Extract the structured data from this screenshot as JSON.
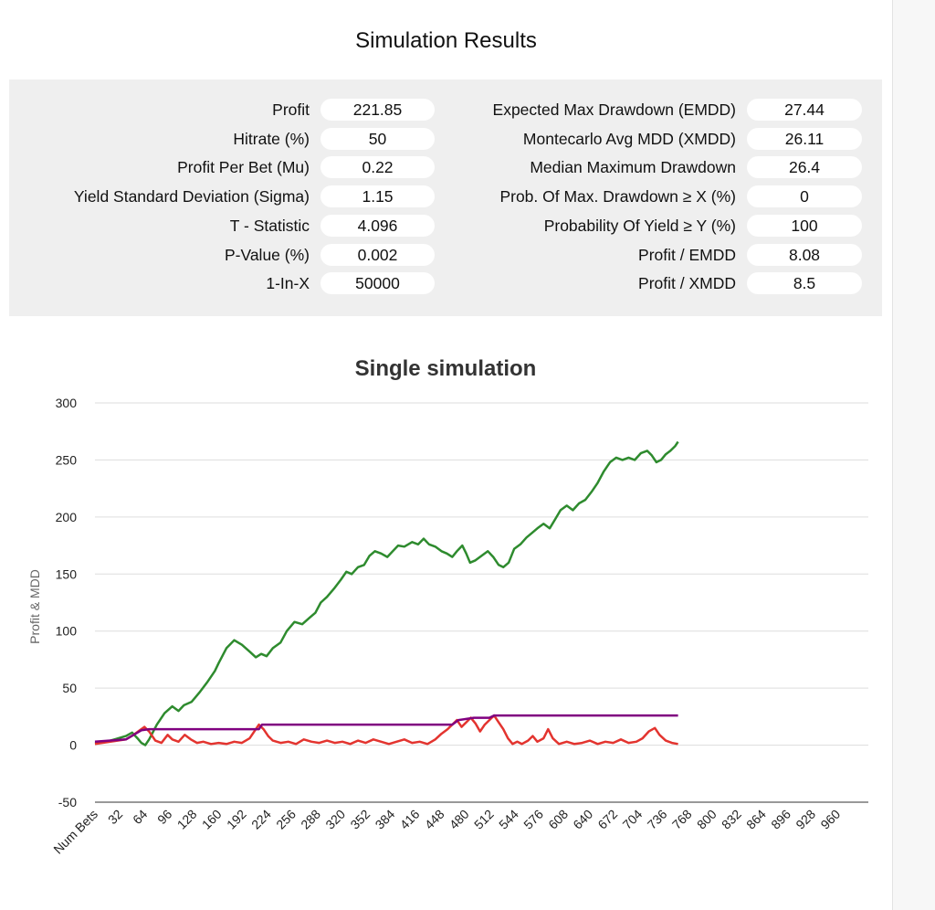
{
  "page": {
    "title": "Simulation Results"
  },
  "stats": {
    "left": [
      {
        "label": "Profit",
        "value": "221.85"
      },
      {
        "label": "Hitrate (%)",
        "value": "50"
      },
      {
        "label": "Profit Per Bet (Mu)",
        "value": "0.22"
      },
      {
        "label": "Yield Standard Deviation (Sigma)",
        "value": "1.15"
      },
      {
        "label": "T - Statistic",
        "value": "4.096"
      },
      {
        "label": "P-Value (%)",
        "value": "0.002"
      },
      {
        "label": "1-In-X",
        "value": "50000"
      }
    ],
    "right": [
      {
        "label": "Expected Max Drawdown (EMDD)",
        "value": "27.44"
      },
      {
        "label": "Montecarlo Avg MDD (XMDD)",
        "value": "26.11"
      },
      {
        "label": "Median Maximum Drawdown",
        "value": "26.4"
      },
      {
        "label": "Prob. Of Max. Drawdown ≥ X (%)",
        "value": "0"
      },
      {
        "label": "Probability Of Yield ≥ Y (%)",
        "value": "100"
      },
      {
        "label": "Profit / EMDD",
        "value": "8.08"
      },
      {
        "label": "Profit / XMDD",
        "value": "8.5"
      }
    ]
  },
  "chart_data": {
    "type": "line",
    "title": "Single simulation",
    "ylabel": "Profit & MDD",
    "xlabel": "",
    "ylim": [
      -50,
      300
    ],
    "yticks": [
      300,
      250,
      200,
      150,
      100,
      50,
      0,
      -50
    ],
    "xlim": [
      0,
      1000
    ],
    "xticks": [
      {
        "label": "Num Bets",
        "x": 0
      },
      {
        "label": "32",
        "x": 32
      },
      {
        "label": "64",
        "x": 64
      },
      {
        "label": "96",
        "x": 96
      },
      {
        "label": "128",
        "x": 128
      },
      {
        "label": "160",
        "x": 160
      },
      {
        "label": "192",
        "x": 192
      },
      {
        "label": "224",
        "x": 224
      },
      {
        "label": "256",
        "x": 256
      },
      {
        "label": "288",
        "x": 288
      },
      {
        "label": "320",
        "x": 320
      },
      {
        "label": "352",
        "x": 352
      },
      {
        "label": "384",
        "x": 384
      },
      {
        "label": "416",
        "x": 416
      },
      {
        "label": "448",
        "x": 448
      },
      {
        "label": "480",
        "x": 480
      },
      {
        "label": "512",
        "x": 512
      },
      {
        "label": "544",
        "x": 544
      },
      {
        "label": "576",
        "x": 576
      },
      {
        "label": "608",
        "x": 608
      },
      {
        "label": "640",
        "x": 640
      },
      {
        "label": "672",
        "x": 672
      },
      {
        "label": "704",
        "x": 704
      },
      {
        "label": "736",
        "x": 736
      },
      {
        "label": "768",
        "x": 768
      },
      {
        "label": "800",
        "x": 800
      },
      {
        "label": "832",
        "x": 832
      },
      {
        "label": "864",
        "x": 864
      },
      {
        "label": "896",
        "x": 896
      },
      {
        "label": "928",
        "x": 928
      },
      {
        "label": "960",
        "x": 960
      }
    ],
    "grid": true,
    "series": [
      {
        "color": "#2e8b2e",
        "points": [
          [
            0,
            2
          ],
          [
            20,
            4
          ],
          [
            40,
            8
          ],
          [
            48,
            11
          ],
          [
            55,
            6
          ],
          [
            60,
            2
          ],
          [
            65,
            0
          ],
          [
            70,
            5
          ],
          [
            80,
            18
          ],
          [
            90,
            28
          ],
          [
            100,
            34
          ],
          [
            108,
            30
          ],
          [
            115,
            35
          ],
          [
            125,
            38
          ],
          [
            135,
            46
          ],
          [
            145,
            55
          ],
          [
            155,
            65
          ],
          [
            160,
            72
          ],
          [
            170,
            85
          ],
          [
            180,
            92
          ],
          [
            190,
            88
          ],
          [
            200,
            82
          ],
          [
            208,
            77
          ],
          [
            215,
            80
          ],
          [
            222,
            78
          ],
          [
            230,
            85
          ],
          [
            240,
            90
          ],
          [
            248,
            100
          ],
          [
            258,
            108
          ],
          [
            268,
            106
          ],
          [
            278,
            112
          ],
          [
            285,
            116
          ],
          [
            292,
            125
          ],
          [
            300,
            130
          ],
          [
            310,
            138
          ],
          [
            318,
            145
          ],
          [
            325,
            152
          ],
          [
            332,
            150
          ],
          [
            340,
            156
          ],
          [
            348,
            158
          ],
          [
            355,
            166
          ],
          [
            362,
            170
          ],
          [
            370,
            168
          ],
          [
            378,
            165
          ],
          [
            385,
            170
          ],
          [
            392,
            175
          ],
          [
            400,
            174
          ],
          [
            410,
            178
          ],
          [
            418,
            176
          ],
          [
            425,
            181
          ],
          [
            432,
            176
          ],
          [
            440,
            174
          ],
          [
            448,
            170
          ],
          [
            455,
            168
          ],
          [
            462,
            165
          ],
          [
            468,
            170
          ],
          [
            475,
            175
          ],
          [
            480,
            168
          ],
          [
            485,
            160
          ],
          [
            492,
            162
          ],
          [
            500,
            166
          ],
          [
            508,
            170
          ],
          [
            515,
            165
          ],
          [
            522,
            158
          ],
          [
            528,
            156
          ],
          [
            535,
            160
          ],
          [
            542,
            172
          ],
          [
            550,
            176
          ],
          [
            558,
            182
          ],
          [
            565,
            186
          ],
          [
            572,
            190
          ],
          [
            580,
            194
          ],
          [
            588,
            190
          ],
          [
            595,
            198
          ],
          [
            602,
            206
          ],
          [
            610,
            210
          ],
          [
            618,
            206
          ],
          [
            626,
            212
          ],
          [
            634,
            215
          ],
          [
            642,
            222
          ],
          [
            650,
            230
          ],
          [
            658,
            240
          ],
          [
            666,
            248
          ],
          [
            674,
            252
          ],
          [
            682,
            250
          ],
          [
            690,
            252
          ],
          [
            698,
            250
          ],
          [
            706,
            256
          ],
          [
            714,
            258
          ],
          [
            720,
            254
          ],
          [
            726,
            248
          ],
          [
            732,
            250
          ],
          [
            738,
            255
          ],
          [
            744,
            258
          ],
          [
            750,
            262
          ],
          [
            754,
            266
          ]
        ]
      },
      {
        "color": "#e3342f",
        "points": [
          [
            0,
            1
          ],
          [
            20,
            3
          ],
          [
            40,
            5
          ],
          [
            50,
            9
          ],
          [
            58,
            13
          ],
          [
            64,
            16
          ],
          [
            70,
            12
          ],
          [
            78,
            4
          ],
          [
            86,
            2
          ],
          [
            94,
            9
          ],
          [
            100,
            5
          ],
          [
            108,
            3
          ],
          [
            116,
            9
          ],
          [
            124,
            5
          ],
          [
            132,
            2
          ],
          [
            140,
            3
          ],
          [
            150,
            1
          ],
          [
            160,
            2
          ],
          [
            170,
            1
          ],
          [
            180,
            3
          ],
          [
            190,
            2
          ],
          [
            200,
            6
          ],
          [
            206,
            12
          ],
          [
            212,
            18
          ],
          [
            218,
            14
          ],
          [
            224,
            8
          ],
          [
            230,
            4
          ],
          [
            240,
            2
          ],
          [
            250,
            3
          ],
          [
            260,
            1
          ],
          [
            270,
            5
          ],
          [
            280,
            3
          ],
          [
            290,
            2
          ],
          [
            300,
            4
          ],
          [
            310,
            2
          ],
          [
            320,
            3
          ],
          [
            330,
            1
          ],
          [
            340,
            4
          ],
          [
            350,
            2
          ],
          [
            360,
            5
          ],
          [
            370,
            3
          ],
          [
            380,
            1
          ],
          [
            390,
            3
          ],
          [
            400,
            5
          ],
          [
            410,
            2
          ],
          [
            420,
            3
          ],
          [
            430,
            1
          ],
          [
            440,
            5
          ],
          [
            448,
            10
          ],
          [
            456,
            14
          ],
          [
            462,
            18
          ],
          [
            468,
            22
          ],
          [
            474,
            16
          ],
          [
            480,
            20
          ],
          [
            486,
            24
          ],
          [
            492,
            19
          ],
          [
            498,
            12
          ],
          [
            504,
            18
          ],
          [
            510,
            22
          ],
          [
            516,
            26
          ],
          [
            522,
            20
          ],
          [
            528,
            14
          ],
          [
            534,
            6
          ],
          [
            540,
            1
          ],
          [
            546,
            3
          ],
          [
            552,
            1
          ],
          [
            560,
            4
          ],
          [
            566,
            8
          ],
          [
            572,
            3
          ],
          [
            580,
            6
          ],
          [
            586,
            14
          ],
          [
            592,
            6
          ],
          [
            600,
            1
          ],
          [
            610,
            3
          ],
          [
            620,
            1
          ],
          [
            630,
            2
          ],
          [
            640,
            4
          ],
          [
            650,
            1
          ],
          [
            660,
            3
          ],
          [
            670,
            2
          ],
          [
            680,
            5
          ],
          [
            690,
            2
          ],
          [
            700,
            3
          ],
          [
            708,
            6
          ],
          [
            716,
            12
          ],
          [
            724,
            15
          ],
          [
            730,
            9
          ],
          [
            738,
            4
          ],
          [
            746,
            2
          ],
          [
            754,
            1
          ]
        ]
      },
      {
        "color": "#800080",
        "points": [
          [
            0,
            3
          ],
          [
            40,
            5
          ],
          [
            60,
            13
          ],
          [
            70,
            14
          ],
          [
            212,
            14
          ],
          [
            216,
            18
          ],
          [
            462,
            18
          ],
          [
            470,
            22
          ],
          [
            490,
            24
          ],
          [
            510,
            24
          ],
          [
            516,
            26
          ],
          [
            754,
            26
          ]
        ]
      }
    ]
  }
}
